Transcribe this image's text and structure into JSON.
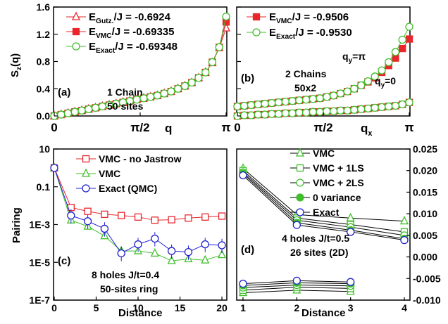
{
  "chart_data": [
    {
      "panel": "(a)",
      "type": "line",
      "xlabel": "q",
      "ylabel": "S_z(q)",
      "x_ticks": [
        "0",
        "π/2",
        "π"
      ],
      "y_ticks": [
        "0.0",
        "0.4",
        "0.8",
        "1.2",
        "1.6"
      ],
      "xlim": [
        0,
        3.1416
      ],
      "ylim": [
        0,
        1.6
      ],
      "annotation": [
        "1 Chain",
        "50 sites"
      ],
      "legend": "top-left",
      "grid": false,
      "series": [
        {
          "name": "E_Gutz./J = -0.6924",
          "marker": "open-triangle",
          "color": "#e8262c",
          "x": [
            0,
            0.126,
            0.251,
            0.377,
            0.503,
            0.628,
            0.754,
            0.88,
            1.005,
            1.131,
            1.257,
            1.382,
            1.508,
            1.634,
            1.759,
            1.885,
            2.011,
            2.136,
            2.262,
            2.388,
            2.513,
            2.639,
            2.765,
            2.89,
            3.016,
            3.142
          ],
          "y": [
            0.0,
            0.02,
            0.04,
            0.06,
            0.08,
            0.1,
            0.12,
            0.14,
            0.16,
            0.18,
            0.2,
            0.22,
            0.24,
            0.26,
            0.28,
            0.3,
            0.33,
            0.36,
            0.4,
            0.44,
            0.49,
            0.56,
            0.64,
            0.78,
            1.0,
            1.29
          ]
        },
        {
          "name": "E_VMC/J = -0.69335",
          "marker": "filled-square",
          "color": "#e8262c",
          "x": [
            0,
            0.126,
            0.251,
            0.377,
            0.503,
            0.628,
            0.754,
            0.88,
            1.005,
            1.131,
            1.257,
            1.382,
            1.508,
            1.634,
            1.759,
            1.885,
            2.011,
            2.136,
            2.262,
            2.388,
            2.513,
            2.639,
            2.765,
            2.89,
            3.016,
            3.142
          ],
          "y": [
            0.0,
            0.02,
            0.04,
            0.06,
            0.08,
            0.1,
            0.12,
            0.14,
            0.16,
            0.18,
            0.2,
            0.22,
            0.24,
            0.26,
            0.28,
            0.3,
            0.33,
            0.36,
            0.4,
            0.44,
            0.49,
            0.56,
            0.64,
            0.79,
            1.01,
            1.38
          ]
        },
        {
          "name": "E_Exact/J = -0.69348",
          "marker": "open-circle",
          "color": "#3fbf2a",
          "x": [
            0,
            0.126,
            0.251,
            0.377,
            0.503,
            0.628,
            0.754,
            0.88,
            1.005,
            1.131,
            1.257,
            1.382,
            1.508,
            1.634,
            1.759,
            1.885,
            2.011,
            2.136,
            2.262,
            2.388,
            2.513,
            2.639,
            2.765,
            2.89,
            3.016,
            3.142
          ],
          "y": [
            0.0,
            0.02,
            0.04,
            0.06,
            0.08,
            0.1,
            0.12,
            0.14,
            0.16,
            0.18,
            0.2,
            0.22,
            0.24,
            0.26,
            0.28,
            0.3,
            0.33,
            0.36,
            0.4,
            0.44,
            0.49,
            0.56,
            0.64,
            0.79,
            1.01,
            1.46
          ]
        }
      ]
    },
    {
      "panel": "(b)",
      "type": "line",
      "xlabel": "q_x",
      "x_ticks": [
        "0",
        "π/2",
        "π"
      ],
      "xlim": [
        0,
        3.1416
      ],
      "ylim": [
        0,
        1.6
      ],
      "annotation": [
        "2 Chains",
        "50x2"
      ],
      "curve_labels": [
        "q_y=π",
        "q_y=0"
      ],
      "legend": "top-left",
      "grid": false,
      "series": [
        {
          "name": "E_VMC/J = -0.9506",
          "marker": "filled-square",
          "color": "#e8262c",
          "curve": "q_y=π",
          "x": [
            0,
            0.126,
            0.251,
            0.377,
            0.503,
            0.628,
            0.754,
            0.88,
            1.005,
            1.131,
            1.257,
            1.382,
            1.508,
            1.634,
            1.759,
            1.885,
            2.011,
            2.136,
            2.262,
            2.388,
            2.513,
            2.639,
            2.765,
            2.89,
            3.016,
            3.142
          ],
          "y": [
            0.14,
            0.15,
            0.16,
            0.17,
            0.18,
            0.19,
            0.2,
            0.21,
            0.22,
            0.23,
            0.24,
            0.25,
            0.26,
            0.28,
            0.3,
            0.33,
            0.36,
            0.4,
            0.45,
            0.5,
            0.56,
            0.64,
            0.74,
            0.85,
            0.99,
            1.13
          ]
        },
        {
          "name": "E_Exact/J = -0.9530",
          "marker": "open-circle",
          "color": "#3fbf2a",
          "curve": "q_y=π",
          "x": [
            0,
            0.126,
            0.251,
            0.377,
            0.503,
            0.628,
            0.754,
            0.88,
            1.005,
            1.131,
            1.257,
            1.382,
            1.508,
            1.634,
            1.759,
            1.885,
            2.011,
            2.136,
            2.262,
            2.388,
            2.513,
            2.639,
            2.765,
            2.89,
            3.016,
            3.142
          ],
          "y": [
            0.14,
            0.15,
            0.16,
            0.17,
            0.18,
            0.19,
            0.2,
            0.21,
            0.22,
            0.23,
            0.24,
            0.25,
            0.26,
            0.28,
            0.3,
            0.33,
            0.36,
            0.4,
            0.45,
            0.51,
            0.58,
            0.67,
            0.79,
            0.94,
            1.12,
            1.31
          ]
        },
        {
          "name": "",
          "marker": "filled-square",
          "color": "#e8262c",
          "curve": "q_y=0",
          "x": [
            0,
            0.126,
            0.251,
            0.377,
            0.503,
            0.628,
            0.754,
            0.88,
            1.005,
            1.131,
            1.257,
            1.382,
            1.508,
            1.634,
            1.759,
            1.885,
            2.011,
            2.136,
            2.262,
            2.388,
            2.513,
            2.639,
            2.765,
            2.89,
            3.016,
            3.142
          ],
          "y": [
            0.0,
            0.01,
            0.01,
            0.02,
            0.02,
            0.03,
            0.03,
            0.04,
            0.04,
            0.05,
            0.05,
            0.06,
            0.06,
            0.07,
            0.07,
            0.08,
            0.08,
            0.09,
            0.1,
            0.11,
            0.12,
            0.13,
            0.14,
            0.15,
            0.17,
            0.2
          ]
        },
        {
          "name": "",
          "marker": "open-circle",
          "color": "#3fbf2a",
          "curve": "q_y=0",
          "x": [
            0,
            0.126,
            0.251,
            0.377,
            0.503,
            0.628,
            0.754,
            0.88,
            1.005,
            1.131,
            1.257,
            1.382,
            1.508,
            1.634,
            1.759,
            1.885,
            2.011,
            2.136,
            2.262,
            2.388,
            2.513,
            2.639,
            2.765,
            2.89,
            3.016,
            3.142
          ],
          "y": [
            0.0,
            0.01,
            0.01,
            0.02,
            0.02,
            0.03,
            0.03,
            0.04,
            0.04,
            0.05,
            0.05,
            0.06,
            0.06,
            0.07,
            0.07,
            0.08,
            0.08,
            0.09,
            0.1,
            0.11,
            0.12,
            0.13,
            0.14,
            0.15,
            0.17,
            0.2
          ]
        }
      ]
    },
    {
      "panel": "(c)",
      "type": "line",
      "xlabel": "Distance",
      "ylabel": "Pairing",
      "x_ticks": [
        "0",
        "5",
        "10",
        "15",
        "20"
      ],
      "y_ticks": [
        "1E-7",
        "1E-5",
        "1E-3",
        "0.1",
        "10"
      ],
      "y_scale": "log",
      "xlim": [
        0,
        20.5
      ],
      "ylim": [
        1e-07,
        10
      ],
      "annotation": [
        "8 holes J/t=0.4",
        "50-sites ring"
      ],
      "legend": "top-right",
      "grid": false,
      "series": [
        {
          "name": "VMC - no Jastrow",
          "marker": "open-square",
          "color": "#e8262c",
          "x": [
            0,
            2,
            4,
            6,
            8,
            10,
            12,
            14,
            16,
            18,
            20
          ],
          "y": [
            1.0,
            0.008,
            0.005,
            0.0035,
            0.003,
            0.0025,
            0.0017,
            0.0018,
            0.0022,
            0.0025,
            0.0028
          ]
        },
        {
          "name": "VMC",
          "marker": "open-triangle",
          "color": "#3fbf2a",
          "x": [
            0,
            2,
            4,
            6,
            8,
            10,
            12,
            14,
            16,
            18,
            20
          ],
          "y": [
            1.0,
            0.0017,
            0.0008,
            0.00025,
            4e-05,
            4e-05,
            3e-05,
            1.2e-05,
            1.5e-05,
            1.3e-05,
            2.5e-05
          ]
        },
        {
          "name": "Exact (QMC)",
          "marker": "open-circle",
          "color": "#1f1fd1",
          "x": [
            0,
            2,
            4,
            6,
            8,
            10,
            12,
            14,
            16,
            18,
            20
          ],
          "y": [
            1.0,
            0.003,
            0.0015,
            0.0006,
            3e-05,
            9e-05,
            0.00018,
            4e-05,
            3.5e-05,
            9e-05,
            8e-05
          ],
          "error_bars": true
        }
      ]
    },
    {
      "panel": "(d)",
      "type": "line",
      "xlabel": "Distance",
      "x_ticks": [
        "1",
        "2",
        "3",
        "4"
      ],
      "y_ticks": [
        "-0.010",
        "-0.005",
        "0.000",
        "0.005",
        "0.010",
        "0.015",
        "0.020",
        "0.025"
      ],
      "y_axis_side": "right",
      "xlim": [
        1,
        4
      ],
      "ylim": [
        -0.01,
        0.025
      ],
      "annotation": [
        "4 holes J/t=0.5",
        "26 sites (2D)"
      ],
      "legend": "top-left",
      "grid": false,
      "series": [
        {
          "name": "VMC",
          "marker": "open-triangle",
          "color": "#3fbf2a",
          "x": [
            1,
            2,
            3,
            4
          ],
          "y": [
            0.0205,
            0.0098,
            0.009,
            0.0083
          ],
          "x2": [
            1,
            2,
            3
          ],
          "y2": [
            -0.0083,
            -0.0077,
            -0.008
          ]
        },
        {
          "name": "VMC + 1LS",
          "marker": "open-square",
          "color": "#3fbf2a",
          "x": [
            1,
            2,
            3,
            4
          ],
          "y": [
            0.02,
            0.009,
            0.0075,
            0.0058
          ],
          "x2": [
            1,
            2,
            3
          ],
          "y2": [
            -0.0077,
            -0.007,
            -0.0073
          ]
        },
        {
          "name": "VMC + 2LS",
          "marker": "open-circle",
          "color": "#3fbf2a",
          "x": [
            1,
            2,
            3,
            4
          ],
          "y": [
            0.0196,
            0.0085,
            0.0069,
            0.005
          ],
          "x2": [
            1,
            2,
            3
          ],
          "y2": [
            -0.0071,
            -0.0065,
            -0.0067
          ]
        },
        {
          "name": "0 variance",
          "marker": "filled-circle",
          "color": "#3fbf2a",
          "x": [
            1,
            2,
            3,
            4
          ],
          "y": [
            0.0193,
            0.0079,
            0.0062,
            0.0042
          ],
          "x2": [
            1,
            2,
            3
          ],
          "y2": [
            -0.0066,
            -0.006,
            -0.0062
          ]
        },
        {
          "name": "Exact",
          "marker": "open-circle",
          "color": "#1f1fd1",
          "x": [
            1,
            2,
            3,
            4
          ],
          "y": [
            0.0189,
            0.0074,
            0.0058,
            0.0039
          ],
          "x2": [
            1,
            2,
            3
          ],
          "y2": [
            -0.0062,
            -0.0055,
            -0.0058
          ]
        }
      ]
    }
  ]
}
